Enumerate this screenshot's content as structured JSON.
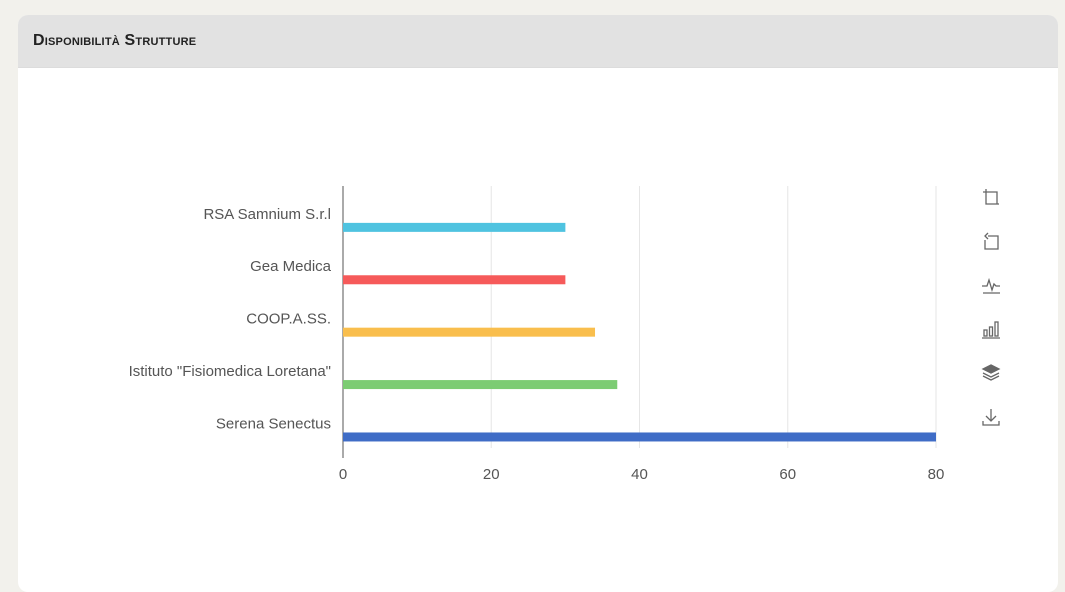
{
  "card": {
    "title": "Disponibilità Strutture"
  },
  "toolbox": {
    "icons": [
      "crop-zoom-icon",
      "zoom-reset-icon",
      "line-chart-icon",
      "bar-chart-icon",
      "stack-icon",
      "download-icon"
    ]
  },
  "colors": {
    "axis": "#555555",
    "grid": "#e6e6e6",
    "label": "#555555"
  },
  "chart_data": {
    "type": "bar",
    "orientation": "horizontal",
    "categories": [
      "RSA Samnium S.r.l",
      "Gea Medica",
      "COOP.A.SS.",
      "Istituto \"Fisiomedica Loretana\"",
      "Serena Senectus"
    ],
    "values": [
      30,
      30,
      34,
      37,
      80
    ],
    "colors": [
      "#4fc3e0",
      "#f65a5a",
      "#f9be4d",
      "#7ccc73",
      "#3f6cc6"
    ],
    "xlim": [
      0,
      80
    ],
    "xticks": [
      0,
      20,
      40,
      60,
      80
    ],
    "grid": true,
    "title": "",
    "xlabel": "",
    "ylabel": ""
  }
}
